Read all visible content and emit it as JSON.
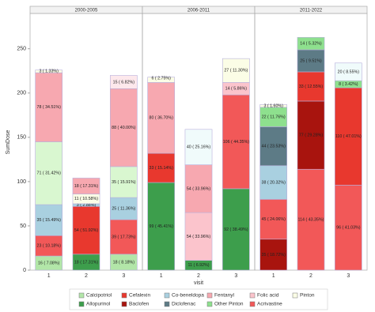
{
  "chart_data": {
    "type": "bar",
    "stacked": true,
    "y_label": "SumDose",
    "x_label": "visit",
    "ylim": [
      0,
      290
    ],
    "yticks": [
      0,
      50,
      100,
      150,
      200,
      250
    ],
    "panels": [
      {
        "title": "2000-2005",
        "bars": [
          {
            "category": "1",
            "values": [
              16,
              23,
              35,
              71,
              78,
              3
            ],
            "value_labels": [
              "16 ( 7.08%)",
              "23 ( 10.18%)",
              "35 ( 15.49%)",
              "71 ( 31.42%)",
              "78 ( 34.51%)",
              "3 ( 1.33%)"
            ],
            "colors": [
              "#b2e6a8",
              "#f25858",
              "#a9d0e0",
              "#d9f7d0",
              "#f7a8b0",
              "#fbfde6"
            ]
          },
          {
            "category": "2",
            "values": [
              18,
              54,
              3,
              11,
              18
            ],
            "value_labels": [
              "18 ( 17.31%)",
              "54 ( 51.92%)",
              "3 ( 2.88%)",
              "11 ( 10.58%)",
              "18 ( 17.31%)"
            ],
            "colors": [
              "#3d9e4c",
              "#e8382e",
              "#a9d0e0",
              "#fbfde6",
              "#f7a8b0"
            ]
          },
          {
            "category": "3",
            "values": [
              18,
              39,
              25,
              35,
              88,
              15
            ],
            "value_labels": [
              "18 ( 8.18%)",
              "39 ( 17.73%)",
              "25 ( 11.36%)",
              "35 ( 15.91%)",
              "88 ( 40.00%)",
              "15 ( 6.82%)"
            ],
            "colors": [
              "#b2e6a8",
              "#f25858",
              "#a9d0e0",
              "#d9f7d0",
              "#f7a8b0",
              "#fde8ec"
            ]
          }
        ]
      },
      {
        "title": "2006-2011",
        "bars": [
          {
            "category": "1",
            "values": [
              99,
              33,
              80,
              6
            ],
            "value_labels": [
              "99 ( 45.41%)",
              "33 ( 15.14%)",
              "80 ( 36.70%)",
              "6 ( 2.75%)"
            ],
            "colors": [
              "#3d9e4c",
              "#e8382e",
              "#f7a8b0",
              "#fbfde6"
            ]
          },
          {
            "category": "2",
            "values": [
              11,
              54,
              54,
              40
            ],
            "value_labels": [
              "11 ( 6.92%)",
              "54 ( 33.96%)",
              "54 ( 33.96%)",
              "40 ( 25.16%)"
            ],
            "colors": [
              "#3d9e4c",
              "#fbc4cc",
              "#f7a8b0",
              "#f0fbfb"
            ]
          },
          {
            "category": "3",
            "values": [
              92,
              106,
              14,
              27
            ],
            "value_labels": [
              "92 ( 38.49%)",
              "106 ( 44.35%)",
              "14 ( 5.86%)",
              "27 ( 11.30%)"
            ],
            "colors": [
              "#3d9e4c",
              "#f25858",
              "#fbc4cc",
              "#fbfde6"
            ]
          }
        ]
      },
      {
        "title": "2011-2022",
        "bars": [
          {
            "category": "1",
            "values": [
              35,
              45,
              38,
              44,
              22,
              3
            ],
            "value_labels": [
              "35 ( 18.72%)",
              "45 ( 24.06%)",
              "38 ( 20.32%)",
              "44 ( 23.53%)",
              "22 ( 11.76%)",
              "3 ( 1.60%)"
            ],
            "colors": [
              "#a8140e",
              "#f25858",
              "#a9d0e0",
              "#5d7b86",
              "#8ee08e",
              "#fbfde6"
            ]
          },
          {
            "category": "2",
            "values": [
              114,
              77,
              33,
              25,
              14
            ],
            "value_labels": [
              "114 ( 43.35%)",
              "77 ( 29.28%)",
              "33 ( 12.55%)",
              "25 ( 9.51%)",
              "14 ( 5.32%)"
            ],
            "colors": [
              "#f25858",
              "#a8140e",
              "#e8382e",
              "#5d7b86",
              "#8ee08e"
            ]
          },
          {
            "category": "3",
            "values": [
              96,
              110,
              8,
              20
            ],
            "value_labels": [
              "96 ( 41.03%)",
              "110 ( 47.01%)",
              "8 ( 3.42%)",
              "20 ( 8.55%)"
            ],
            "colors": [
              "#f25858",
              "#e8382e",
              "#8ee08e",
              "#f0fbfb"
            ]
          }
        ]
      }
    ],
    "legend": [
      {
        "name": "Calcipotriol",
        "color": "#b2e6a8"
      },
      {
        "name": "Cefalexin",
        "color": "#e8382e"
      },
      {
        "name": "Co-beneldopa",
        "color": "#a9d0e0"
      },
      {
        "name": "Fentanyl",
        "color": "#f7a8b0"
      },
      {
        "name": "Folic acid",
        "color": "#fbc4cc"
      },
      {
        "name": "Pinton",
        "color": "#fbfde6"
      },
      {
        "name": "Allopurinol",
        "color": "#3d9e4c"
      },
      {
        "name": "Baclofen",
        "color": "#a8140e"
      },
      {
        "name": "Diclofenac",
        "color": "#5d7b86"
      },
      {
        "name": "Other Pinton",
        "color": "#8ee08e"
      },
      {
        "name": "Acrivastine",
        "color": "#f25858"
      }
    ]
  }
}
